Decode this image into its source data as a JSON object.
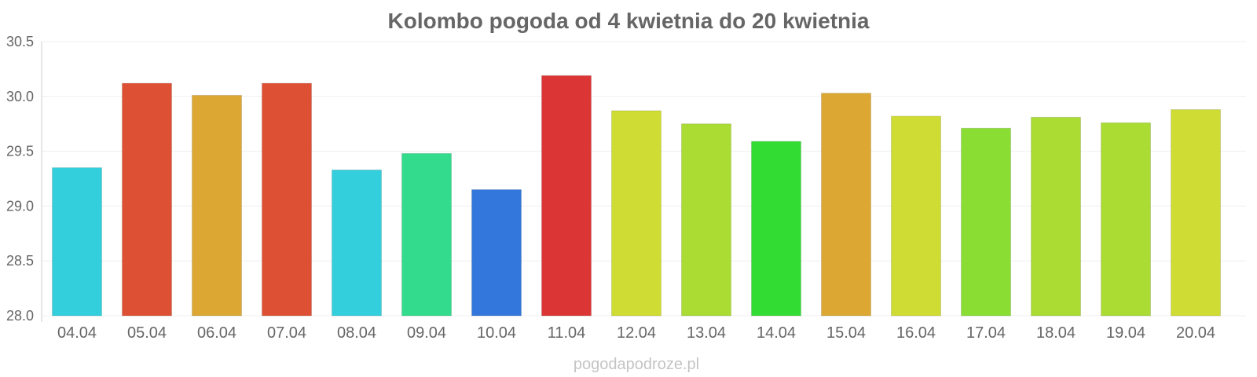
{
  "chart_data": {
    "type": "bar",
    "title": "Kolombo pogoda od 4 kwietnia do 20 kwietnia",
    "xlabel": "",
    "ylabel": "",
    "ylim": [
      28.0,
      30.5
    ],
    "yticks": [
      "28.0",
      "28.5",
      "29.0",
      "29.5",
      "30.0",
      "30.5"
    ],
    "grid": true,
    "categories": [
      "04.04",
      "05.04",
      "06.04",
      "07.04",
      "08.04",
      "09.04",
      "10.04",
      "11.04",
      "12.04",
      "13.04",
      "14.04",
      "15.04",
      "16.04",
      "17.04",
      "18.04",
      "19.04",
      "20.04"
    ],
    "values": [
      29.35,
      30.12,
      30.01,
      30.12,
      29.33,
      29.48,
      29.15,
      30.19,
      29.87,
      29.75,
      29.59,
      30.03,
      29.82,
      29.71,
      29.81,
      29.76,
      29.88
    ],
    "colors": [
      "#33cfdc",
      "#de5033",
      "#dca833",
      "#de5033",
      "#33cfdc",
      "#33dc8c",
      "#3377dc",
      "#dc3535",
      "#cedc33",
      "#aadc33",
      "#33dc33",
      "#dca833",
      "#cedc33",
      "#8ade33",
      "#aadc33",
      "#aadc33",
      "#cedc33"
    ]
  },
  "credit": "pogodapodroze.pl"
}
